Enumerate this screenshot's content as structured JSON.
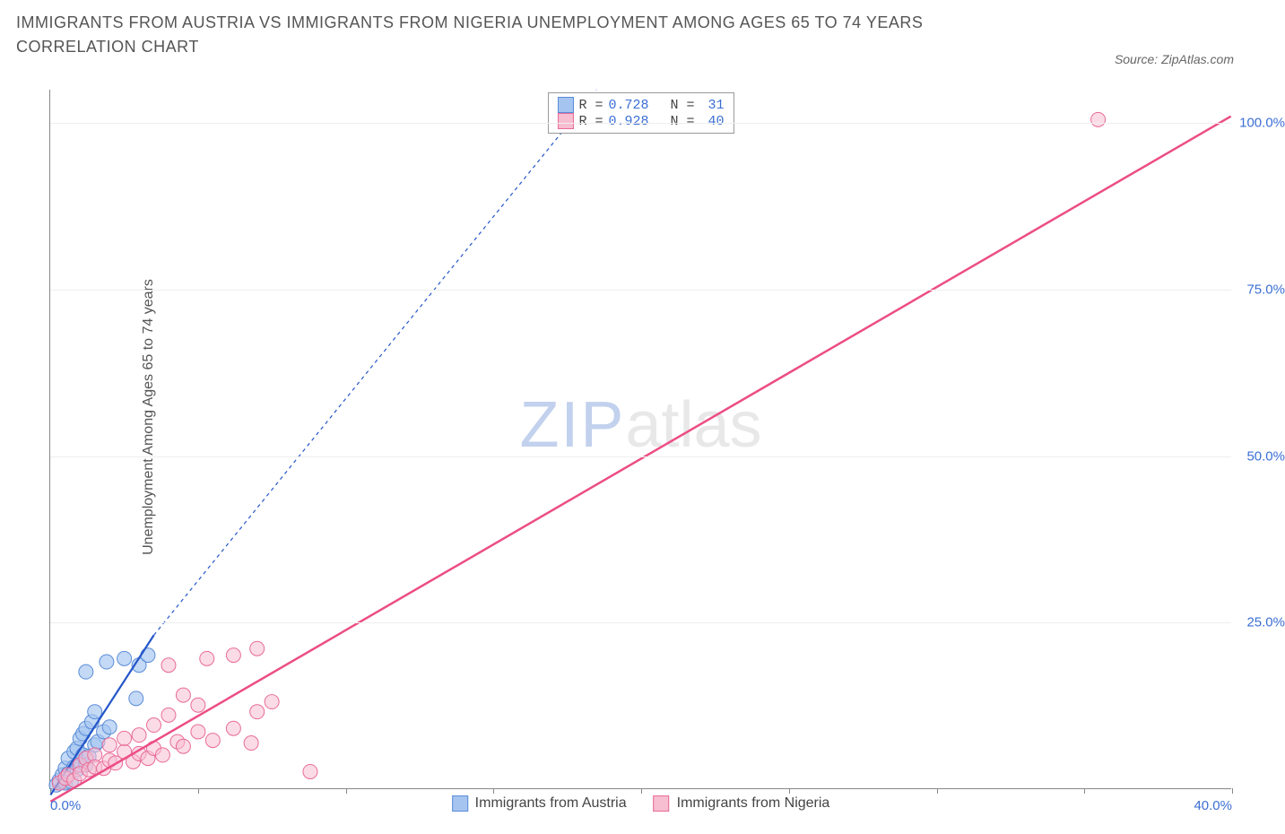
{
  "title": "IMMIGRANTS FROM AUSTRIA VS IMMIGRANTS FROM NIGERIA UNEMPLOYMENT AMONG AGES 65 TO 74 YEARS CORRELATION CHART",
  "source_label": "Source: ZipAtlas.com",
  "y_axis_label": "Unemployment Among Ages 65 to 74 years",
  "watermark": {
    "part1": "ZIP",
    "part2": "atlas"
  },
  "chart": {
    "type": "scatter",
    "background_color": "#ffffff",
    "grid_color": "#eeeeee",
    "axis_color": "#888888",
    "tick_label_color": "#3b6fd4",
    "tick_fontsize": 15,
    "xlim": [
      0,
      40
    ],
    "ylim": [
      0,
      105
    ],
    "x_ticks": [
      0,
      5,
      10,
      15,
      20,
      25,
      30,
      35,
      40
    ],
    "x_tick_labels": {
      "0": "0.0%",
      "40": "40.0%"
    },
    "y_ticks": [
      25,
      50,
      75,
      100
    ],
    "y_tick_labels": {
      "25": "25.0%",
      "50": "50.0%",
      "75": "75.0%",
      "100": "100.0%"
    },
    "series": [
      {
        "name": "Immigrants from Austria",
        "legend_label": "Immigrants from Austria",
        "marker_fill": "#a5c4f0",
        "marker_stroke": "#5a8cd8",
        "marker_opacity": 0.65,
        "marker_radius": 8,
        "line_color": "#2456c9",
        "line_width": 2.2,
        "line_dash_extension": "4 4",
        "R": "0.728",
        "N": "31",
        "fit": {
          "x1": 0,
          "y1": -1,
          "x2": 3.5,
          "y2": 23
        },
        "fit_ext": {
          "x1": 3.5,
          "y1": 23,
          "x2": 18.5,
          "y2": 105
        },
        "points": [
          [
            0.2,
            0.5
          ],
          [
            0.3,
            1.2
          ],
          [
            0.4,
            2.0
          ],
          [
            0.5,
            0.8
          ],
          [
            0.5,
            3.0
          ],
          [
            0.6,
            4.5
          ],
          [
            0.6,
            2.2
          ],
          [
            0.7,
            1.0
          ],
          [
            0.8,
            5.5
          ],
          [
            0.8,
            3.2
          ],
          [
            0.9,
            6.0
          ],
          [
            0.9,
            2.8
          ],
          [
            1.0,
            7.5
          ],
          [
            1.0,
            4.0
          ],
          [
            1.1,
            8.2
          ],
          [
            1.1,
            5.0
          ],
          [
            1.2,
            3.5
          ],
          [
            1.2,
            9.0
          ],
          [
            1.3,
            4.8
          ],
          [
            1.4,
            10.0
          ],
          [
            1.5,
            6.5
          ],
          [
            1.5,
            11.5
          ],
          [
            1.6,
            7.0
          ],
          [
            1.8,
            8.5
          ],
          [
            1.9,
            19.0
          ],
          [
            2.0,
            9.2
          ],
          [
            1.2,
            17.5
          ],
          [
            2.5,
            19.5
          ],
          [
            2.9,
            13.5
          ],
          [
            3.0,
            18.5
          ],
          [
            3.3,
            20.0
          ]
        ]
      },
      {
        "name": "Immigrants from Nigeria",
        "legend_label": "Immigrants from Nigeria",
        "marker_fill": "#f7bdd1",
        "marker_stroke": "#e86b98",
        "marker_opacity": 0.55,
        "marker_radius": 8,
        "line_color": "#ec4d85",
        "line_width": 2.5,
        "R": "0.928",
        "N": "40",
        "fit": {
          "x1": 0,
          "y1": -2,
          "x2": 40,
          "y2": 101
        },
        "points": [
          [
            0.3,
            0.8
          ],
          [
            0.5,
            1.5
          ],
          [
            0.6,
            2.0
          ],
          [
            0.8,
            1.2
          ],
          [
            1.0,
            3.5
          ],
          [
            1.0,
            2.2
          ],
          [
            1.2,
            4.5
          ],
          [
            1.3,
            2.8
          ],
          [
            1.5,
            5.0
          ],
          [
            1.5,
            3.2
          ],
          [
            1.8,
            3.0
          ],
          [
            2.0,
            6.5
          ],
          [
            2.0,
            4.2
          ],
          [
            2.2,
            3.8
          ],
          [
            2.5,
            5.5
          ],
          [
            2.5,
            7.5
          ],
          [
            2.8,
            4.0
          ],
          [
            3.0,
            8.0
          ],
          [
            3.0,
            5.2
          ],
          [
            3.3,
            4.5
          ],
          [
            3.5,
            9.5
          ],
          [
            3.5,
            6.0
          ],
          [
            3.8,
            5.0
          ],
          [
            4.0,
            18.5
          ],
          [
            4.0,
            11.0
          ],
          [
            4.3,
            7.0
          ],
          [
            4.5,
            14.0
          ],
          [
            4.5,
            6.3
          ],
          [
            5.0,
            12.5
          ],
          [
            5.0,
            8.5
          ],
          [
            5.3,
            19.5
          ],
          [
            5.5,
            7.2
          ],
          [
            6.2,
            20.0
          ],
          [
            6.2,
            9.0
          ],
          [
            6.8,
            6.8
          ],
          [
            7.0,
            11.5
          ],
          [
            7.0,
            21.0
          ],
          [
            7.5,
            13.0
          ],
          [
            8.8,
            2.5
          ],
          [
            35.5,
            100.5
          ]
        ]
      }
    ]
  }
}
